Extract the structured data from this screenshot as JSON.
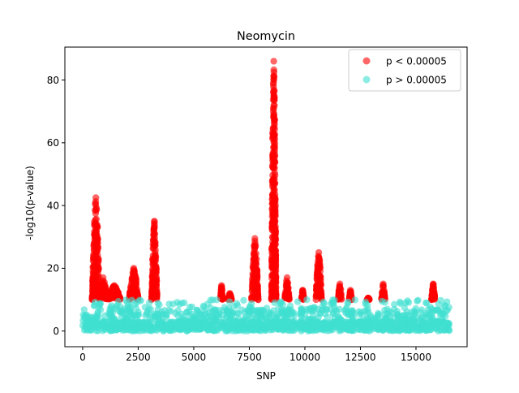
{
  "chart_data": {
    "type": "scatter",
    "title": "Neomycin",
    "xlabel": "SNP",
    "ylabel": "-log10(p-value)",
    "xlim": [
      -800,
      17300
    ],
    "ylim": [
      -5,
      90.5
    ],
    "xticks": [
      0,
      2500,
      5000,
      7500,
      10000,
      12500,
      15000
    ],
    "yticks": [
      0,
      20,
      40,
      60,
      80
    ],
    "grid": false,
    "legend_position": "top-right",
    "marker_alpha": 0.6,
    "significance_cutoff": 10,
    "series": [
      {
        "name": "p < 0.00005",
        "color": "#ff0000",
        "peaks": [
          {
            "x_start": 430,
            "x_end": 760,
            "peak_y": 42.5
          },
          {
            "x_start": 740,
            "x_end": 1100,
            "peak_y": 17
          },
          {
            "x_start": 1150,
            "x_end": 1700,
            "peak_y": 14.5
          },
          {
            "x_start": 2100,
            "x_end": 2500,
            "peak_y": 20
          },
          {
            "x_start": 3100,
            "x_end": 3350,
            "peak_y": 35
          },
          {
            "x_start": 6200,
            "x_end": 6300,
            "peak_y": 14.5
          },
          {
            "x_start": 6550,
            "x_end": 6700,
            "peak_y": 12
          },
          {
            "x_start": 7600,
            "x_end": 7900,
            "peak_y": 29.5
          },
          {
            "x_start": 8500,
            "x_end": 8700,
            "peak_y": 86
          },
          {
            "x_start": 9100,
            "x_end": 9300,
            "peak_y": 17
          },
          {
            "x_start": 9850,
            "x_end": 9950,
            "peak_y": 13
          },
          {
            "x_start": 10500,
            "x_end": 10750,
            "peak_y": 25
          },
          {
            "x_start": 11500,
            "x_end": 11650,
            "peak_y": 15
          },
          {
            "x_start": 12000,
            "x_end": 12100,
            "peak_y": 13
          },
          {
            "x_start": 12800,
            "x_end": 12900,
            "peak_y": 10.5
          },
          {
            "x_start": 13450,
            "x_end": 13600,
            "peak_y": 15
          },
          {
            "x_start": 15700,
            "x_end": 15850,
            "peak_y": 15
          }
        ]
      },
      {
        "name": "p > 0.00005",
        "color": "#40e0d0",
        "x_range": [
          0,
          16500
        ],
        "y_range": [
          0,
          10
        ]
      }
    ]
  }
}
